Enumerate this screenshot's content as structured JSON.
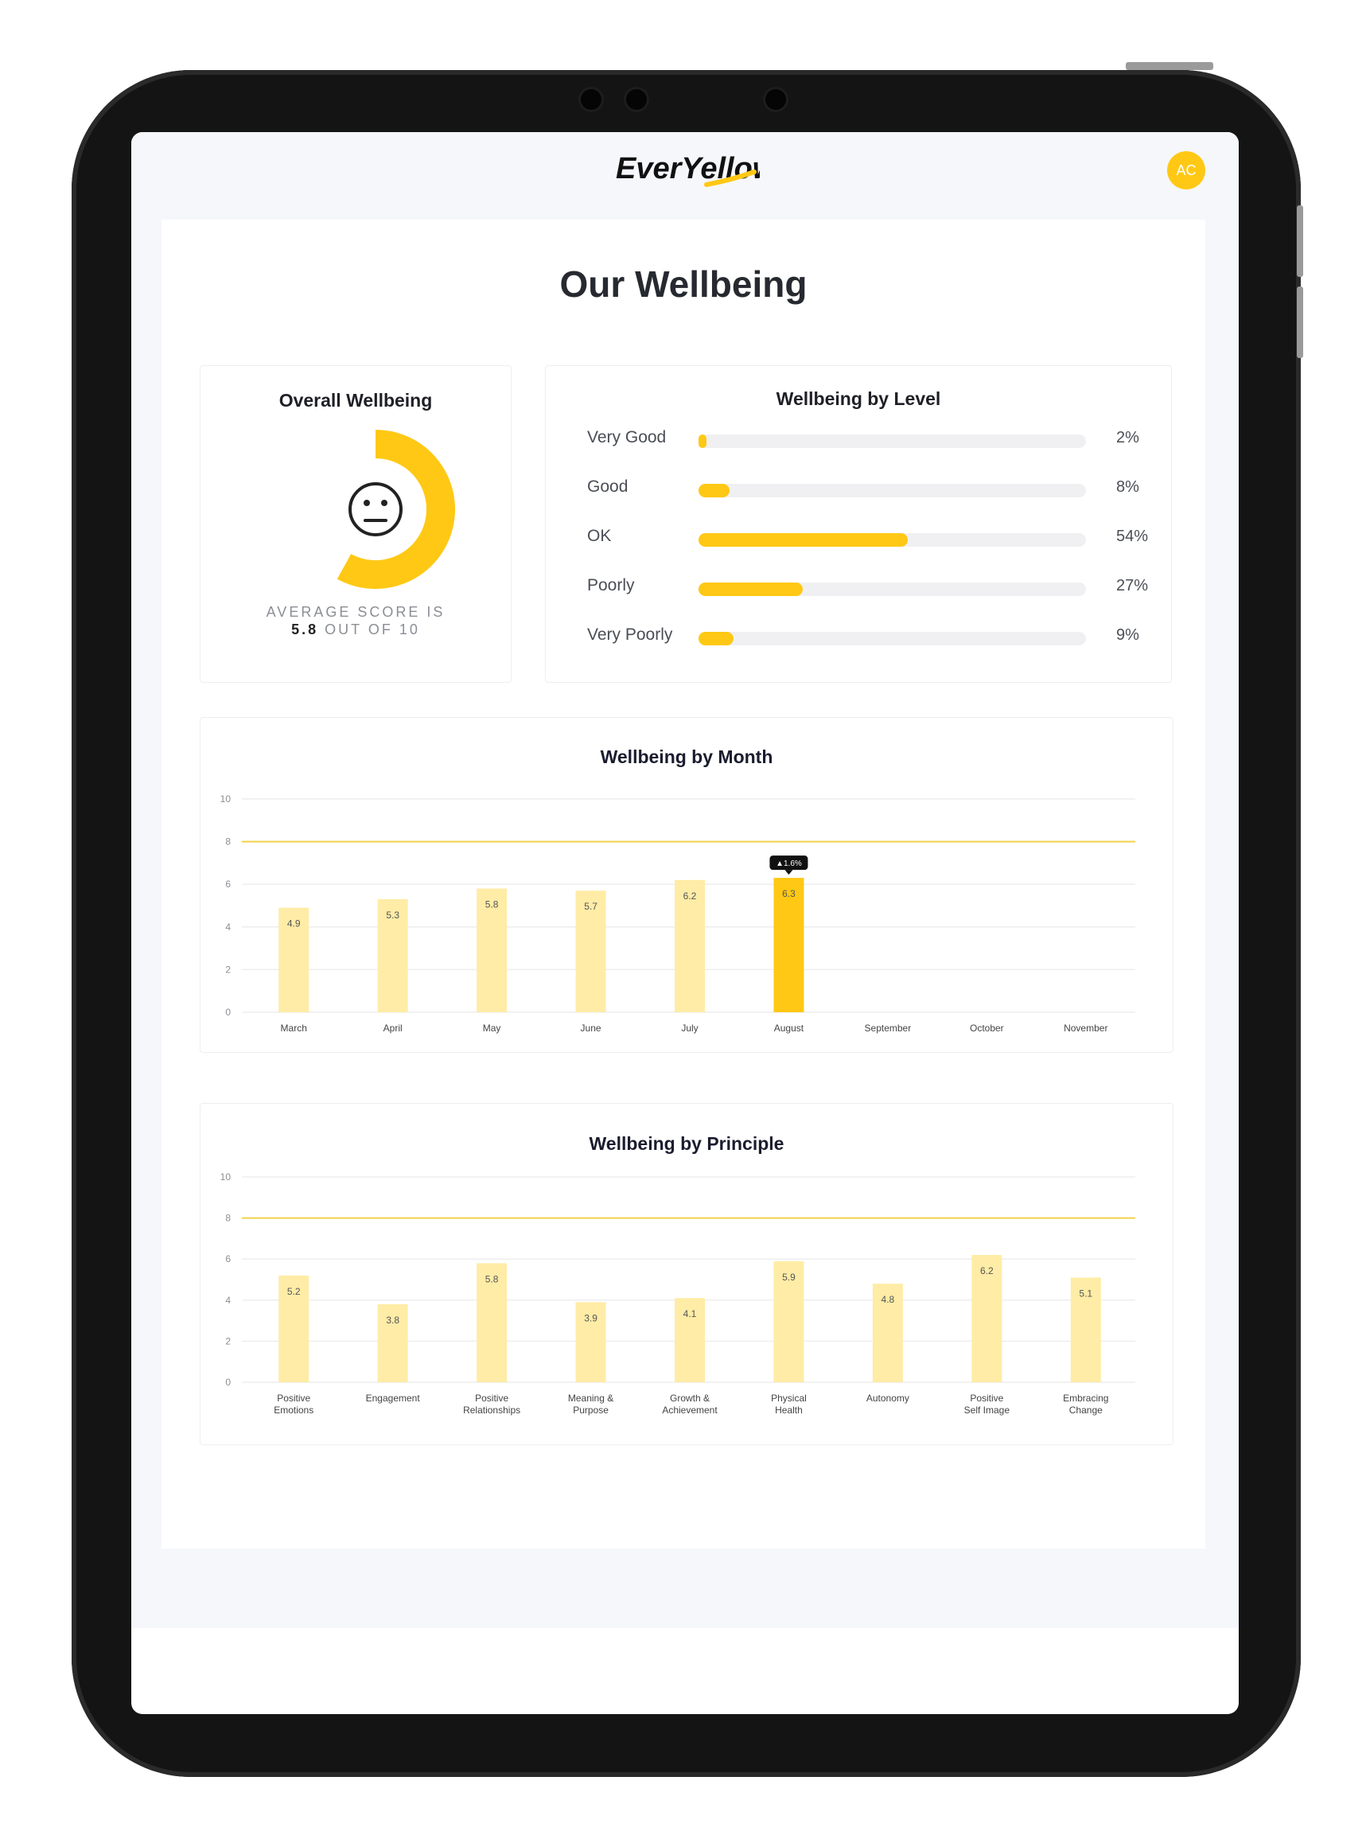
{
  "app": {
    "logo_text": "EverYellow",
    "avatar_initials": "AC",
    "brand_color": "#ffc814",
    "bar_light_color": "#ffeca6",
    "target_line_color": "#f2d24a"
  },
  "page": {
    "title": "Our Wellbeing"
  },
  "overall": {
    "title": "Overall Wellbeing",
    "icon": "neutral-face-icon",
    "score": 5.8,
    "max": 10,
    "avg_prefix": "AVERAGE SCORE IS",
    "avg_score_text": "5.8",
    "avg_suffix": "OUT OF 10"
  },
  "levels": {
    "title": "Wellbeing by Level",
    "items": [
      {
        "label": "Very Good",
        "value": 2,
        "pct_text": "2%"
      },
      {
        "label": "Good",
        "value": 8,
        "pct_text": "8%"
      },
      {
        "label": "OK",
        "value": 54,
        "pct_text": "54%"
      },
      {
        "label": "Poorly",
        "value": 27,
        "pct_text": "27%"
      },
      {
        "label": "Very Poorly",
        "value": 9,
        "pct_text": "9%"
      }
    ]
  },
  "chart_data": [
    {
      "type": "bar",
      "title": "Wellbeing by Month",
      "categories": [
        [
          "March"
        ],
        [
          "April"
        ],
        [
          "May"
        ],
        [
          "June"
        ],
        [
          "July"
        ],
        [
          "August"
        ],
        [
          "September"
        ],
        [
          "October"
        ],
        [
          "November"
        ]
      ],
      "values": [
        4.9,
        5.3,
        5.8,
        5.7,
        6.2,
        6.3,
        null,
        null,
        null
      ],
      "value_labels": [
        "4.9",
        "5.3",
        "5.8",
        "5.7",
        "6.2",
        "6.3",
        "",
        "",
        ""
      ],
      "highlight_index": 5,
      "tooltip": "▲1.6%",
      "yticks": [
        0,
        2,
        4,
        6,
        8,
        10
      ],
      "ylim": [
        0,
        10
      ],
      "target_line": 8
    },
    {
      "type": "bar",
      "title": "Wellbeing by Principle",
      "categories": [
        [
          "Positive",
          "Emotions"
        ],
        [
          "Engagement"
        ],
        [
          "Positive",
          "Relationships"
        ],
        [
          "Meaning &",
          "Purpose"
        ],
        [
          "Growth &",
          "Achievement"
        ],
        [
          "Physical",
          "Health"
        ],
        [
          "Autonomy"
        ],
        [
          "Positive",
          "Self Image"
        ],
        [
          "Embracing",
          "Change"
        ]
      ],
      "values": [
        5.2,
        3.8,
        5.8,
        3.9,
        4.1,
        5.9,
        4.8,
        6.2,
        5.1
      ],
      "value_labels": [
        "5.2",
        "3.8",
        "5.8",
        "3.9",
        "4.1",
        "5.9",
        "4.8",
        "6.2",
        "5.1"
      ],
      "highlight_index": -1,
      "yticks": [
        0,
        2,
        4,
        6,
        8,
        10
      ],
      "ylim": [
        0,
        10
      ],
      "target_line": 8
    }
  ]
}
